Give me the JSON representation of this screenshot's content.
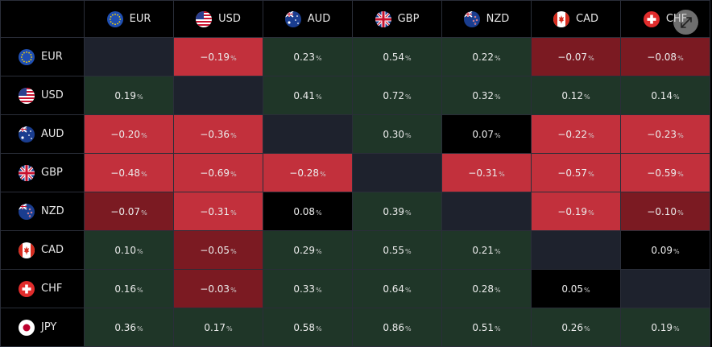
{
  "currencies": [
    {
      "code": "EUR",
      "flag": "eu-flag-icon"
    },
    {
      "code": "USD",
      "flag": "us-flag-icon"
    },
    {
      "code": "AUD",
      "flag": "au-flag-icon"
    },
    {
      "code": "GBP",
      "flag": "gb-flag-icon"
    },
    {
      "code": "NZD",
      "flag": "nz-flag-icon"
    },
    {
      "code": "CAD",
      "flag": "ca-flag-icon"
    },
    {
      "code": "CHF",
      "flag": "ch-flag-icon"
    },
    {
      "code": "JPY",
      "flag": "jp-flag-icon"
    }
  ],
  "columns": [
    "EUR",
    "USD",
    "AUD",
    "GBP",
    "NZD",
    "CAD",
    "CHF"
  ],
  "percent_sign": "%",
  "rows": [
    {
      "currency": "EUR",
      "cells": [
        null,
        "−0.19",
        "0.23",
        "0.54",
        "0.22",
        "−0.07",
        "−0.08"
      ]
    },
    {
      "currency": "USD",
      "cells": [
        "0.19",
        null,
        "0.41",
        "0.72",
        "0.32",
        "0.12",
        "0.14"
      ]
    },
    {
      "currency": "AUD",
      "cells": [
        "−0.20",
        "−0.36",
        null,
        "0.30",
        "0.07",
        "−0.22",
        "−0.23"
      ]
    },
    {
      "currency": "GBP",
      "cells": [
        "−0.48",
        "−0.69",
        "−0.28",
        null,
        "−0.31",
        "−0.57",
        "−0.59"
      ]
    },
    {
      "currency": "NZD",
      "cells": [
        "−0.07",
        "−0.31",
        "0.08",
        "0.39",
        null,
        "−0.19",
        "−0.10"
      ]
    },
    {
      "currency": "CAD",
      "cells": [
        "0.10",
        "−0.05",
        "0.29",
        "0.55",
        "0.21",
        null,
        "0.09"
      ]
    },
    {
      "currency": "CHF",
      "cells": [
        "0.16",
        "−0.03",
        "0.33",
        "0.64",
        "0.28",
        "0.05",
        null
      ]
    },
    {
      "currency": "JPY",
      "cells": [
        "0.36",
        "0.17",
        "0.58",
        "0.86",
        "0.51",
        "0.26",
        "0.19"
      ]
    }
  ],
  "colors": {
    "positive": "#1f3628",
    "negative_strong": "#c2303c",
    "negative_weak": "#7b1a22",
    "neutral": "#000000",
    "empty": "#1e222d",
    "grid": "#2a2e39"
  },
  "expand_icon": "expand-arrows-icon"
}
